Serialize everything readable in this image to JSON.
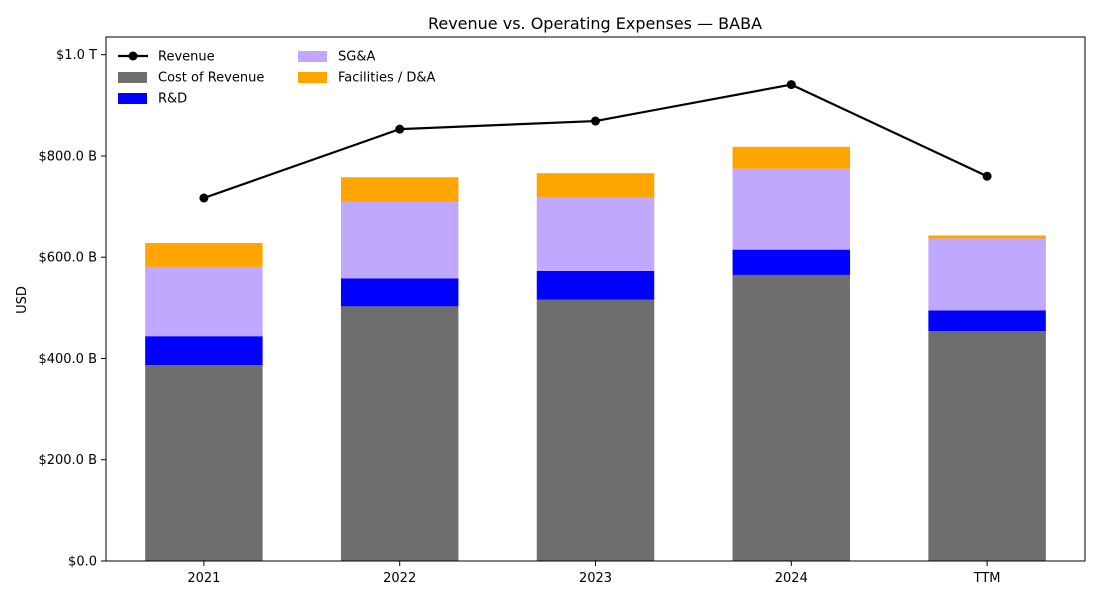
{
  "chart_data": {
    "type": "bar",
    "title": "Revenue vs. Operating Expenses — BABA",
    "xlabel": "",
    "ylabel": "USD",
    "categories": [
      "2021",
      "2022",
      "2023",
      "2024",
      "TTM"
    ],
    "ylim": [
      0,
      1035
    ],
    "y_ticks": [
      0,
      200,
      400,
      600,
      800,
      1000
    ],
    "y_tick_labels": [
      "$0.0",
      "$200.0 B",
      "$400.0 B",
      "$600.0 B",
      "$800.0 B",
      "$1.0 T"
    ],
    "stacked": true,
    "grid": false,
    "legend_position": "top-left",
    "units": "USD billions",
    "series": [
      {
        "name": "Cost of Revenue",
        "kind": "bar",
        "color": "#6e6e6e",
        "values": [
          387,
          503,
          516,
          565,
          454
        ]
      },
      {
        "name": "R&D",
        "kind": "bar",
        "color": "#0000ff",
        "values": [
          57,
          55,
          57,
          50,
          41
        ]
      },
      {
        "name": "SG&A",
        "kind": "bar",
        "color": "#c0a8ff",
        "values": [
          137,
          152,
          146,
          160,
          142
        ]
      },
      {
        "name": "Facilities / D&A",
        "kind": "bar",
        "color": "#ffa500",
        "values": [
          47,
          48,
          47,
          43,
          6
        ]
      },
      {
        "name": "Revenue",
        "kind": "line",
        "color": "#000000",
        "values": [
          717,
          853,
          869,
          941,
          760
        ]
      }
    ],
    "legend_order": [
      "Revenue",
      "Cost of Revenue",
      "R&D",
      "SG&A",
      "Facilities / D&A"
    ]
  }
}
